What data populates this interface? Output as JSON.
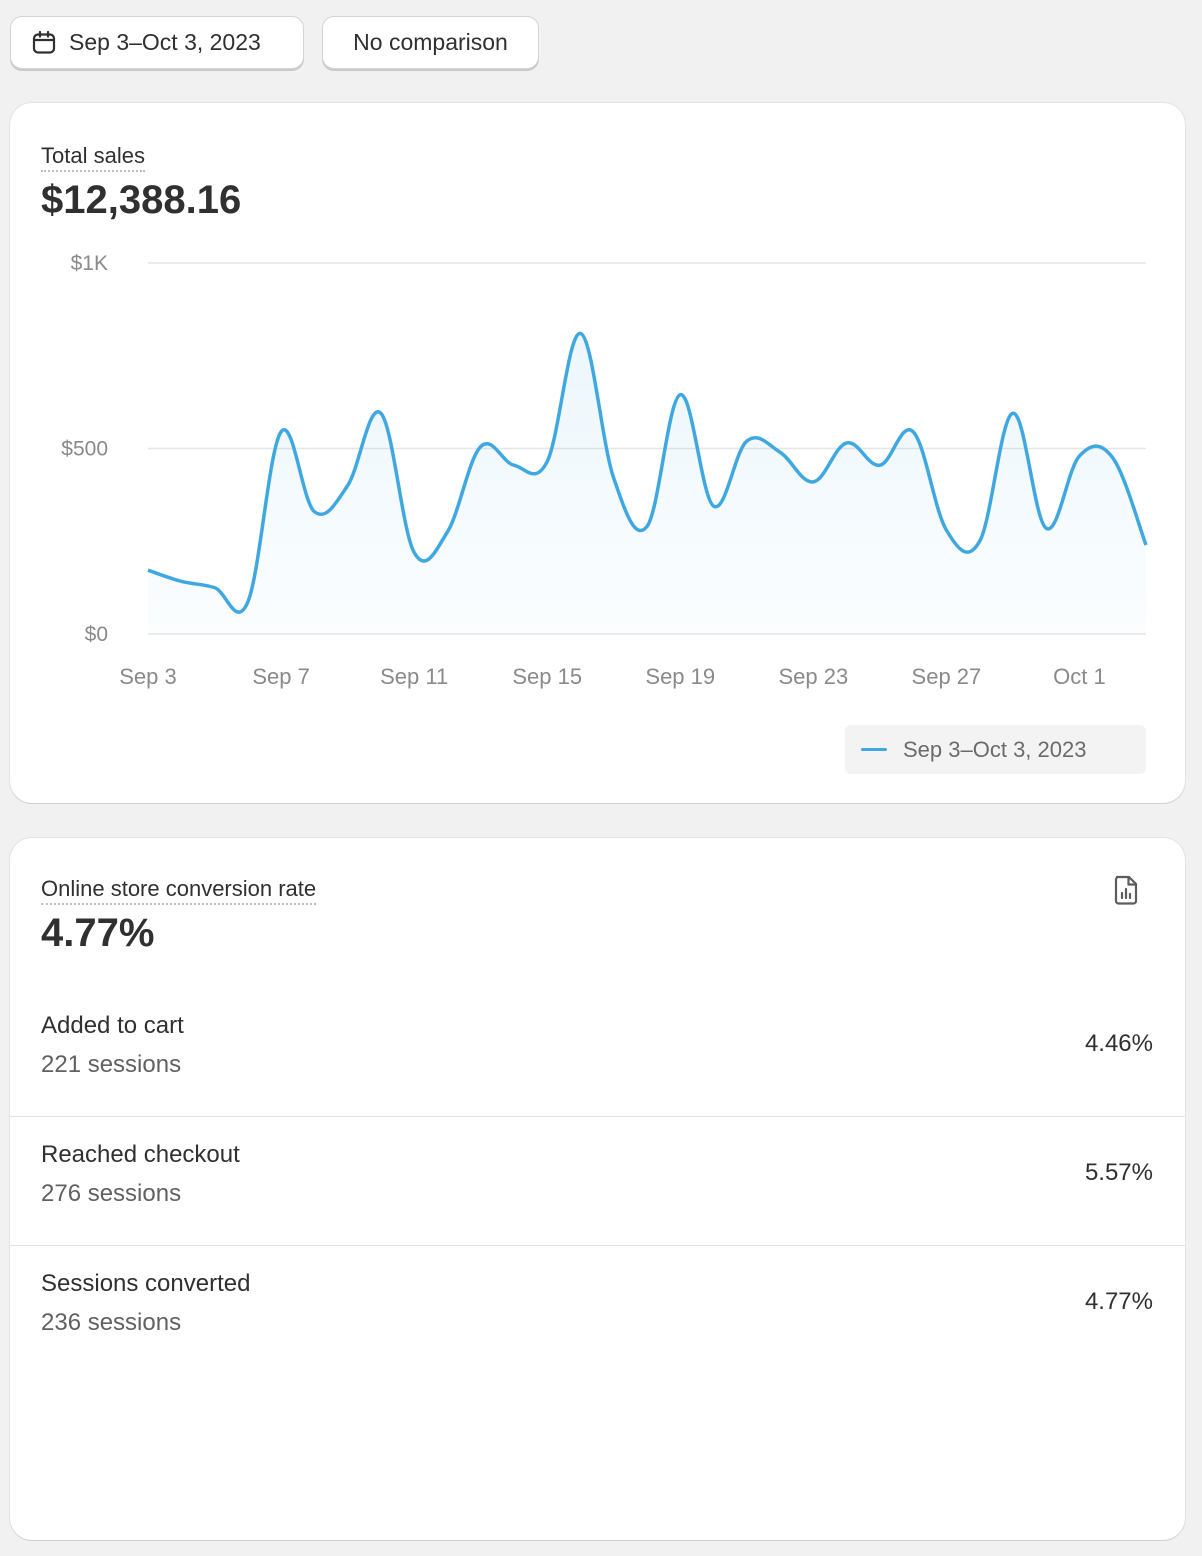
{
  "filters": {
    "date_range_label": "Sep 3–Oct 3, 2023",
    "comparison_label": "No comparison"
  },
  "total_sales": {
    "label": "Total sales",
    "value": "$12,388.16"
  },
  "chart_data": {
    "type": "line",
    "title": "",
    "xlabel": "",
    "ylabel": "",
    "y_ticks": [
      "$0",
      "$500",
      "$1K"
    ],
    "y_tick_values": [
      0,
      500,
      1000
    ],
    "ylim": [
      0,
      1000
    ],
    "x_ticks": [
      "Sep 3",
      "Sep 7",
      "Sep 11",
      "Sep 15",
      "Sep 19",
      "Sep 23",
      "Sep 27",
      "Oct 1"
    ],
    "x": [
      "Sep 3",
      "Sep 4",
      "Sep 5",
      "Sep 6",
      "Sep 7",
      "Sep 8",
      "Sep 9",
      "Sep 10",
      "Sep 11",
      "Sep 12",
      "Sep 13",
      "Sep 14",
      "Sep 15",
      "Sep 16",
      "Sep 17",
      "Sep 18",
      "Sep 19",
      "Sep 20",
      "Sep 21",
      "Sep 22",
      "Sep 23",
      "Sep 24",
      "Sep 25",
      "Sep 26",
      "Sep 27",
      "Sep 28",
      "Sep 29",
      "Sep 30",
      "Oct 1",
      "Oct 2",
      "Oct 3"
    ],
    "series": [
      {
        "name": "Sep 3–Oct 3, 2023",
        "color": "#3fa8e0",
        "values": [
          172,
          142,
          125,
          86,
          545,
          330,
          400,
          595,
          220,
          275,
          505,
          455,
          465,
          810,
          420,
          290,
          645,
          345,
          520,
          490,
          410,
          515,
          455,
          545,
          280,
          250,
          595,
          285,
          480,
          475,
          240
        ]
      }
    ],
    "grid": true,
    "legend": "bottom-right"
  },
  "conversion": {
    "label": "Online store conversion rate",
    "value": "4.77%",
    "icon": "report-document-icon",
    "steps": [
      {
        "name": "Added to cart",
        "sessions": "221 sessions",
        "pct": "4.46%"
      },
      {
        "name": "Reached checkout",
        "sessions": "276 sessions",
        "pct": "5.57%"
      },
      {
        "name": "Sessions converted",
        "sessions": "236 sessions",
        "pct": "4.77%"
      }
    ]
  }
}
